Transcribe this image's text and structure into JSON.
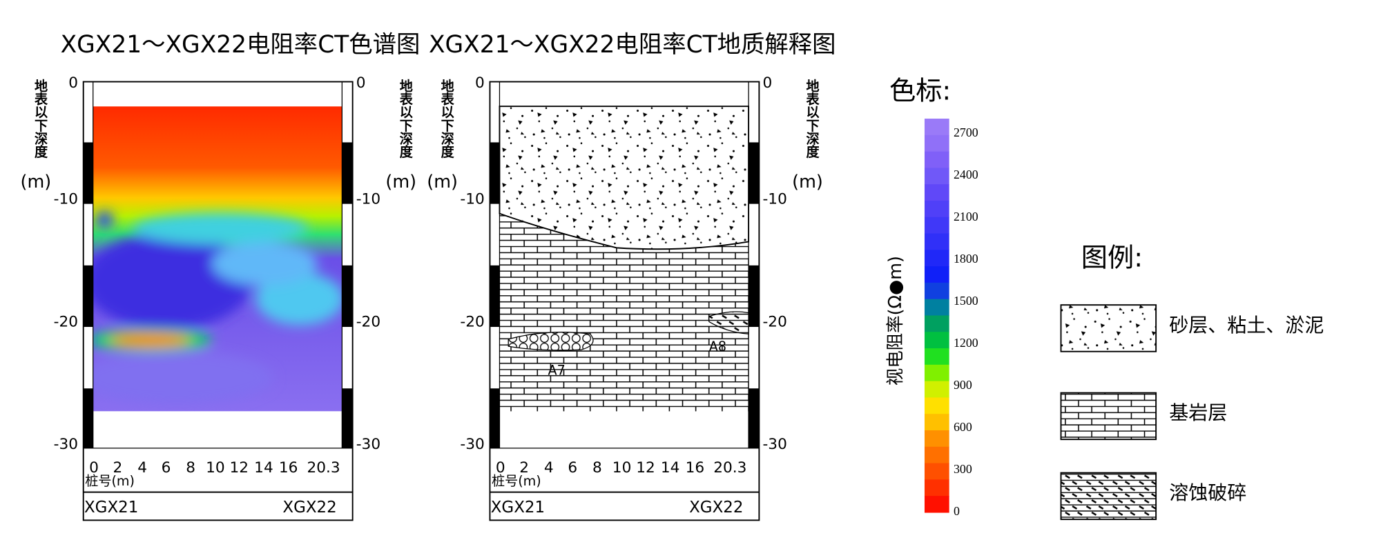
{
  "panels": [
    {
      "title": "XGX21～XGX22电阻率CT色谱图",
      "depth_label": "地表以下深度",
      "depth_unit": "(m)",
      "depth_ticks": [
        "0",
        "-10",
        "-20",
        "-30"
      ],
      "x_label": "桩号(m)",
      "x_ticks": [
        "0",
        "2",
        "4",
        "6",
        "8",
        "10",
        "12",
        "14",
        "16",
        "20.3"
      ],
      "left_hole": "XGX21",
      "right_hole": "XGX22"
    },
    {
      "title": "XGX21～XGX22电阻率CT地质解释图",
      "depth_label": "地表以下深度",
      "depth_unit": "(m)",
      "depth_ticks": [
        "0",
        "-10",
        "-20",
        "-30"
      ],
      "x_label": "桩号(m)",
      "x_ticks": [
        "0",
        "2",
        "4",
        "6",
        "8",
        "10",
        "12",
        "14",
        "16",
        "20.3"
      ],
      "left_hole": "XGX21",
      "right_hole": "XGX22",
      "annotations": [
        "A7",
        "A8"
      ]
    }
  ],
  "colorbar": {
    "title": "色标:",
    "label": "视电阻率(Ω●m)",
    "ticks": [
      "2700",
      "2400",
      "2100",
      "1800",
      "1500",
      "1200",
      "900",
      "600",
      "300",
      "0"
    ]
  },
  "legend": {
    "title": "图例:",
    "items": [
      "砂层、粘土、淤泥",
      "基岩层",
      "溶蚀破碎"
    ]
  }
}
